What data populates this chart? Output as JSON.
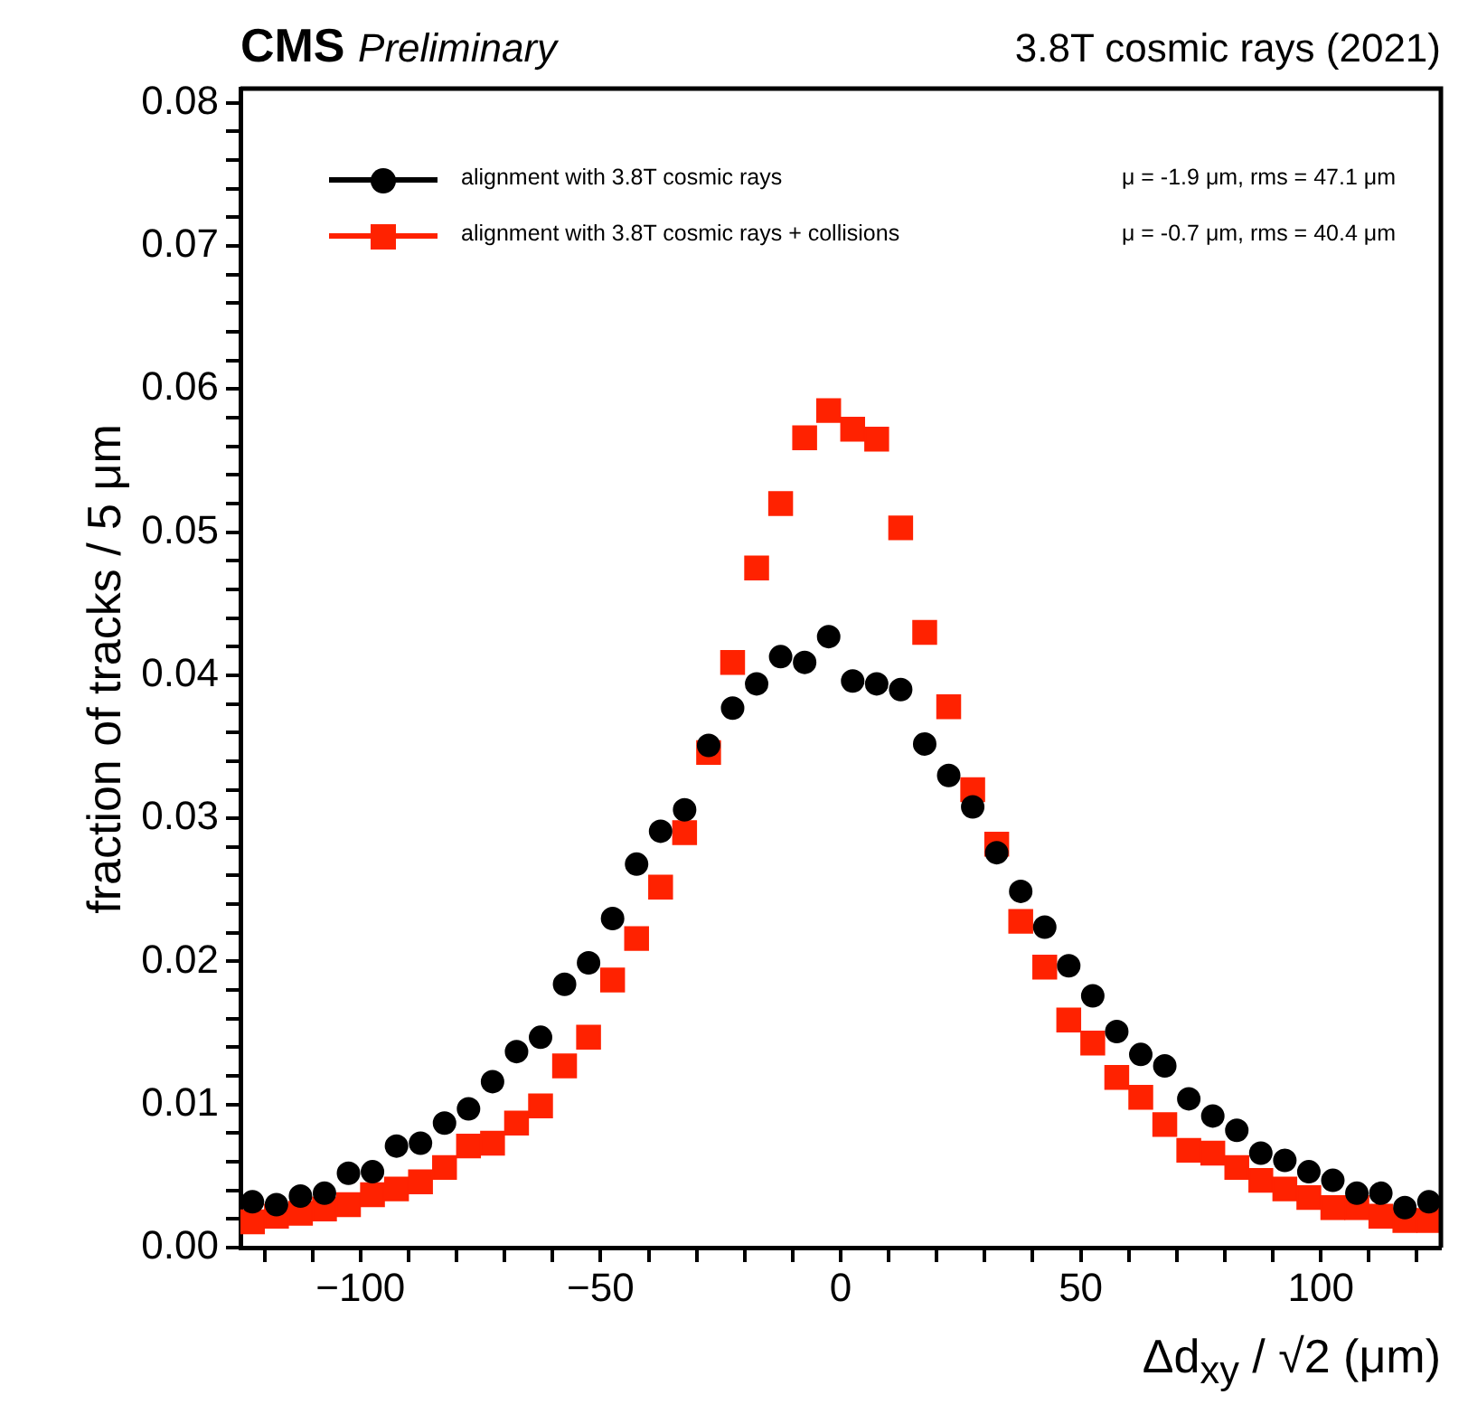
{
  "chart_data": {
    "type": "scatter",
    "title": "CMS Preliminary",
    "subtitle": "3.8T cosmic rays (2021)",
    "xlabel": "Δd$_{xy}$ / √2 (μm)",
    "ylabel": "fraction of tracks / 5 μm",
    "annotations": [
      "μ = -1.9 μm, rms = 47.1 μm",
      "μ = -0.7 μm, rms = 40.4 μm"
    ],
    "x": [
      -122.5,
      -117.5,
      -112.5,
      -107.5,
      -102.5,
      -97.5,
      -92.5,
      -87.5,
      -82.5,
      -77.5,
      -72.5,
      -67.5,
      -62.5,
      -57.5,
      -52.5,
      -47.5,
      -42.5,
      -37.5,
      -32.5,
      -27.5,
      -22.5,
      -17.5,
      -12.5,
      -7.5,
      -2.5,
      2.5,
      7.5,
      12.5,
      17.5,
      22.5,
      27.5,
      32.5,
      37.5,
      42.5,
      47.5,
      52.5,
      57.5,
      62.5,
      67.5,
      72.5,
      77.5,
      82.5,
      87.5,
      92.5,
      97.5,
      102.5,
      107.5,
      112.5,
      117.5,
      122.5
    ],
    "series": [
      {
        "name": "alignment with 3.8T cosmic rays",
        "color": "#000000",
        "marker": "circle",
        "values": [
          0.0032,
          0.003,
          0.0036,
          0.0038,
          0.0052,
          0.0053,
          0.0071,
          0.0073,
          0.0087,
          0.0097,
          0.0116,
          0.0137,
          0.0147,
          0.0184,
          0.0199,
          0.023,
          0.0268,
          0.0291,
          0.0306,
          0.0351,
          0.0377,
          0.0394,
          0.0413,
          0.0409,
          0.0427,
          0.0396,
          0.0394,
          0.039,
          0.0352,
          0.033,
          0.0308,
          0.0276,
          0.0249,
          0.0224,
          0.0197,
          0.0176,
          0.0151,
          0.0135,
          0.0127,
          0.0104,
          0.0092,
          0.0082,
          0.0066,
          0.0061,
          0.0053,
          0.0047,
          0.0038,
          0.0038,
          0.0028,
          0.0032
        ]
      },
      {
        "name": "alignment with 3.8T cosmic rays + collisions",
        "color": "#ff2200",
        "marker": "square",
        "values": [
          0.0018,
          0.0022,
          0.0024,
          0.0027,
          0.003,
          0.0037,
          0.0041,
          0.0046,
          0.0056,
          0.0071,
          0.0073,
          0.0087,
          0.0099,
          0.0127,
          0.0147,
          0.0187,
          0.0216,
          0.0252,
          0.029,
          0.0346,
          0.0409,
          0.0475,
          0.052,
          0.0566,
          0.0585,
          0.0572,
          0.0565,
          0.0503,
          0.043,
          0.0378,
          0.032,
          0.0282,
          0.0228,
          0.0196,
          0.0159,
          0.0143,
          0.0119,
          0.0105,
          0.0086,
          0.0068,
          0.0066,
          0.0056,
          0.0047,
          0.0041,
          0.0035,
          0.0028,
          0.0028,
          0.0022,
          0.0019,
          0.0019
        ]
      }
    ],
    "xlim": [
      -125,
      125
    ],
    "xticks": [
      {
        "value": -120,
        "label": null
      },
      {
        "value": -110,
        "label": null
      },
      {
        "value": -100,
        "label": "−100"
      },
      {
        "value": -90,
        "label": null
      },
      {
        "value": -80,
        "label": null
      },
      {
        "value": -70,
        "label": null
      },
      {
        "value": -60,
        "label": null
      },
      {
        "value": -50,
        "label": "−50"
      },
      {
        "value": -40,
        "label": null
      },
      {
        "value": -30,
        "label": null
      },
      {
        "value": -20,
        "label": null
      },
      {
        "value": -10,
        "label": null
      },
      0,
      {
        "value": 10,
        "label": null
      },
      {
        "value": 20,
        "label": null
      },
      {
        "value": 30,
        "label": null
      },
      {
        "value": 40,
        "label": null
      },
      50,
      {
        "value": 60,
        "label": null
      },
      {
        "value": 70,
        "label": null
      },
      {
        "value": 80,
        "label": null
      },
      {
        "value": 90,
        "label": null
      },
      100,
      {
        "value": 110,
        "label": null
      },
      {
        "value": 120,
        "label": null
      }
    ],
    "ylim": [
      0,
      0.081
    ],
    "yticks": [
      {
        "value": 0,
        "label": "0.00"
      },
      {
        "value": 0.002,
        "label": null
      },
      {
        "value": 0.004,
        "label": null
      },
      {
        "value": 0.006,
        "label": null
      },
      {
        "value": 0.008,
        "label": null
      },
      0.01,
      {
        "value": 0.012,
        "label": null
      },
      {
        "value": 0.014,
        "label": null
      },
      {
        "value": 0.016,
        "label": null
      },
      {
        "value": 0.018,
        "label": null
      },
      {
        "value": 0.02,
        "label": "0.02"
      },
      {
        "value": 0.022,
        "label": null
      },
      {
        "value": 0.024,
        "label": null
      },
      {
        "value": 0.026,
        "label": null
      },
      {
        "value": 0.028,
        "label": null
      },
      {
        "value": 0.03,
        "label": "0.03"
      },
      {
        "value": 0.032,
        "label": null
      },
      {
        "value": 0.034,
        "label": null
      },
      {
        "value": 0.036,
        "label": null
      },
      {
        "value": 0.038,
        "label": null
      },
      {
        "value": 0.04,
        "label": "0.04"
      },
      {
        "value": 0.042,
        "label": null
      },
      {
        "value": 0.044,
        "label": null
      },
      {
        "value": 0.046,
        "label": null
      },
      {
        "value": 0.048,
        "label": null
      },
      {
        "value": 0.05,
        "label": "0.05"
      },
      {
        "value": 0.052,
        "label": null
      },
      {
        "value": 0.054,
        "label": null
      },
      {
        "value": 0.056,
        "label": null
      },
      {
        "value": 0.058,
        "label": null
      },
      {
        "value": 0.06,
        "label": "0.06"
      },
      {
        "value": 0.062,
        "label": null
      },
      {
        "value": 0.064,
        "label": null
      },
      {
        "value": 0.066,
        "label": null
      },
      {
        "value": 0.068,
        "label": null
      },
      {
        "value": 0.07,
        "label": "0.07"
      },
      {
        "value": 0.072,
        "label": null
      },
      {
        "value": 0.074,
        "label": null
      },
      {
        "value": 0.076,
        "label": null
      },
      {
        "value": 0.078,
        "label": null
      },
      {
        "value": 0.08,
        "label": "0.08"
      }
    ],
    "grid": false,
    "legend": "top left"
  }
}
